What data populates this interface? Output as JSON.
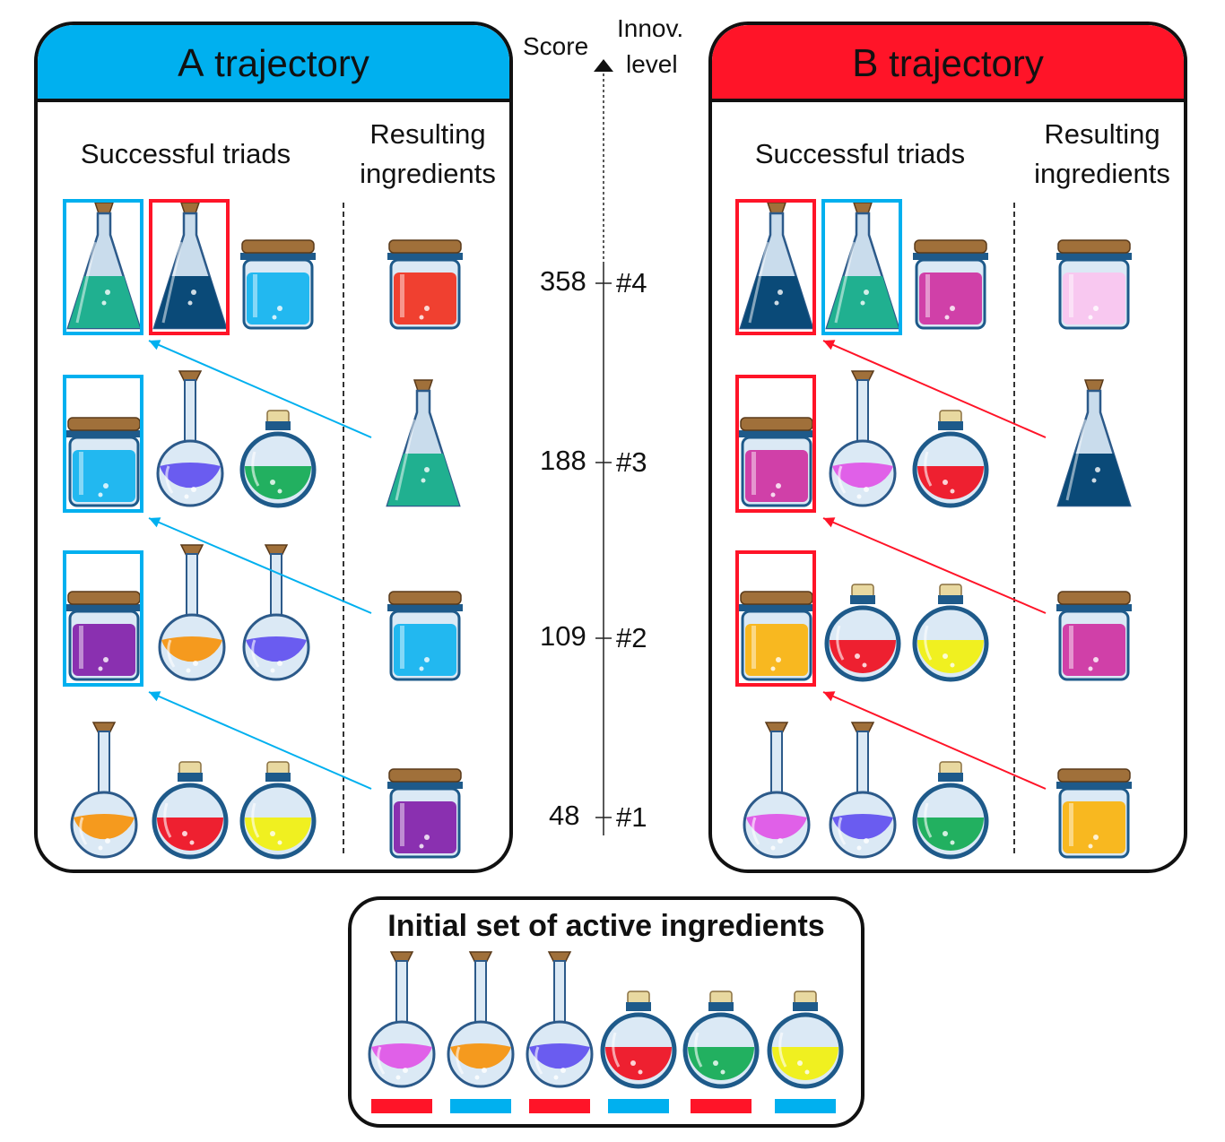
{
  "trajectory_a": {
    "title_letter": "A",
    "title_word": "trajectory",
    "col_triads": "Successful triads",
    "col_result_1": "Resulting",
    "col_result_2": "ingredients",
    "accent": "#00b0ef"
  },
  "trajectory_b": {
    "title_letter": "B",
    "title_word": "trajectory",
    "col_triads": "Successful triads",
    "col_result_1": "Resulting",
    "col_result_2": "ingredients",
    "accent": "#ff1428"
  },
  "axis": {
    "score_label": "Score",
    "innov_label_1": "Innov.",
    "innov_label_2": "level",
    "scores": [
      "358",
      "188",
      "109",
      "48"
    ],
    "levels": [
      "#4",
      "#3",
      "#2",
      "#1"
    ]
  },
  "initial": {
    "title": "Initial set of active ingredients",
    "ingredients": [
      {
        "icon": "magenta-long-flask-icon",
        "marker": "#ff1428"
      },
      {
        "icon": "orange-long-flask-icon",
        "marker": "#00b0ef"
      },
      {
        "icon": "blue-long-flask-icon",
        "marker": "#ff1428"
      },
      {
        "icon": "red-round-flask-icon",
        "marker": "#00b0ef"
      },
      {
        "icon": "green-round-flask-icon",
        "marker": "#ff1428"
      },
      {
        "icon": "yellow-round-flask-icon",
        "marker": "#00b0ef"
      }
    ]
  }
}
